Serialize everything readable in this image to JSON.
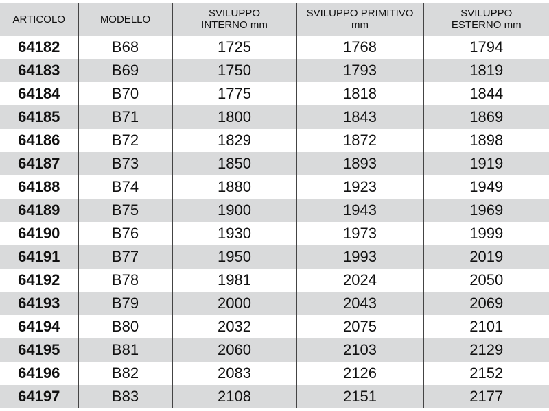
{
  "table": {
    "headers": [
      "ARTICOLO",
      "MODELLO",
      "SVILUPPO INTERNO mm",
      "SVILUPPO PRIMITIVO mm",
      "SVILUPPO ESTERNO mm"
    ],
    "rows": [
      [
        "64182",
        "B68",
        "1725",
        "1768",
        "1794"
      ],
      [
        "64183",
        "B69",
        "1750",
        "1793",
        "1819"
      ],
      [
        "64184",
        "B70",
        "1775",
        "1818",
        "1844"
      ],
      [
        "64185",
        "B71",
        "1800",
        "1843",
        "1869"
      ],
      [
        "64186",
        "B72",
        "1829",
        "1872",
        "1898"
      ],
      [
        "64187",
        "B73",
        "1850",
        "1893",
        "1919"
      ],
      [
        "64188",
        "B74",
        "1880",
        "1923",
        "1949"
      ],
      [
        "64189",
        "B75",
        "1900",
        "1943",
        "1969"
      ],
      [
        "64190",
        "B76",
        "1930",
        "1973",
        "1999"
      ],
      [
        "64191",
        "B77",
        "1950",
        "1993",
        "2019"
      ],
      [
        "64192",
        "B78",
        "1981",
        "2024",
        "2050"
      ],
      [
        "64193",
        "B79",
        "2000",
        "2043",
        "2069"
      ],
      [
        "64194",
        "B80",
        "2032",
        "2075",
        "2101"
      ],
      [
        "64195",
        "B81",
        "2060",
        "2103",
        "2129"
      ],
      [
        "64196",
        "B82",
        "2083",
        "2126",
        "2152"
      ],
      [
        "64197",
        "B83",
        "2108",
        "2151",
        "2177"
      ]
    ]
  }
}
